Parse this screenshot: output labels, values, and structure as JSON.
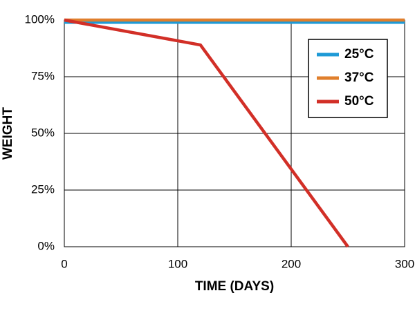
{
  "chart_data": {
    "type": "line",
    "xlabel": "TIME (DAYS)",
    "ylabel": "WEIGHT",
    "xlim": [
      0,
      300
    ],
    "xticks": [
      0,
      100,
      200,
      300
    ],
    "ylim": [
      0,
      100
    ],
    "yticks": [
      {
        "value": 0,
        "label": "0%"
      },
      {
        "value": 25,
        "label": "25%"
      },
      {
        "value": 50,
        "label": "50%"
      },
      {
        "value": 75,
        "label": "75%"
      },
      {
        "value": 100,
        "label": "100%"
      }
    ],
    "grid": true,
    "legend": "upper right",
    "series": [
      {
        "name": "25°C",
        "color": "#1e9ad6",
        "x": [
          0,
          300
        ],
        "values": [
          99,
          99
        ]
      },
      {
        "name": "37°C",
        "color": "#e07f2c",
        "x": [
          0,
          300
        ],
        "values": [
          100,
          100
        ]
      },
      {
        "name": "50°C",
        "color": "#d22f27",
        "x": [
          0,
          120,
          250
        ],
        "values": [
          100,
          89,
          0
        ]
      }
    ]
  }
}
